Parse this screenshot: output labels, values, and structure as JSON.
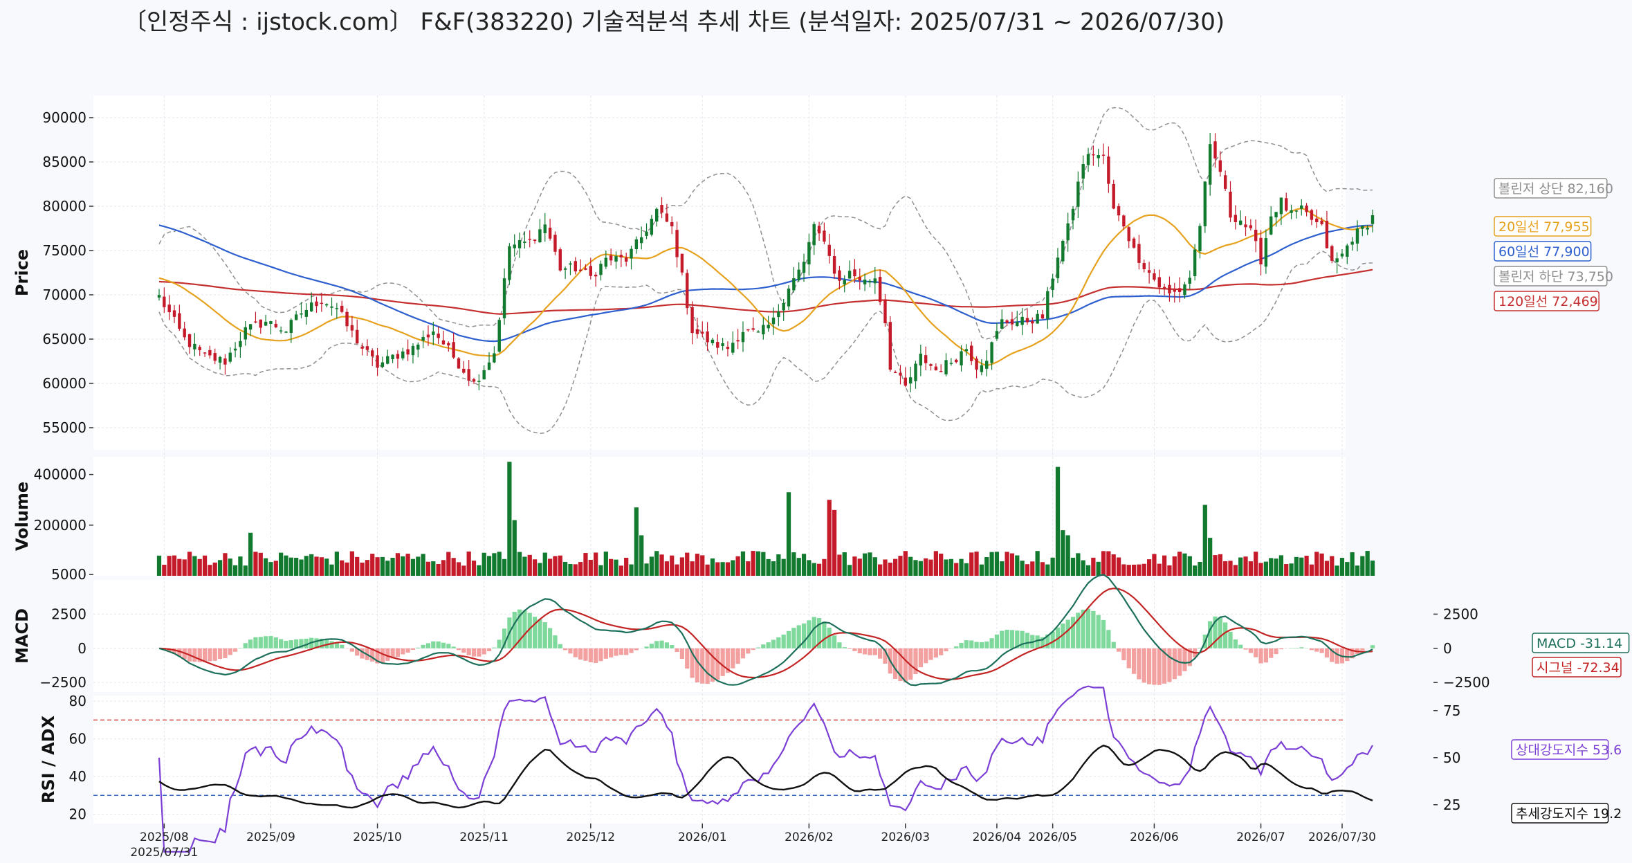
{
  "title": "〔인정주식 : ijstock.com〕 F&F(383220) 기술적분석 추세 차트 (분석일자: 2025/07/31 ~ 2026/07/30)",
  "colors": {
    "up": "#117a2e",
    "down": "#c41a2a",
    "ma20": "#e6a11d",
    "ma60": "#2d5fcf",
    "ma120": "#c62f2f",
    "boll": "#8f8f8f",
    "macd": "#1c6f5a",
    "signal": "#c42323",
    "hist_pos": "#7fd89c",
    "hist_neg": "#f2a0a0",
    "rsi": "#7b3fd6",
    "adx": "#111111",
    "ref_high": "#d94a4a",
    "ref_low": "#3568c4"
  },
  "chart_data": [
    {
      "type": "candlestick",
      "ylabel": "Price",
      "ylim": [
        52500,
        92500
      ],
      "yticks": [
        55000,
        60000,
        65000,
        70000,
        75000,
        80000,
        85000,
        90000
      ],
      "x_start": "2025/07/31",
      "x_end": "2026/07/30",
      "xticks": [
        "2025/08",
        "2025/09",
        "2025/10",
        "2025/11",
        "2025/12",
        "2026/01",
        "2026/02",
        "2026/03",
        "2026/04",
        "2026/05",
        "2026/06",
        "2026/07",
        "2026/07/30"
      ],
      "xtick_first_sub": "2025/07/31",
      "xtick_month_index": [
        1,
        22,
        43,
        64,
        85,
        107,
        128,
        147,
        165,
        176,
        196,
        217,
        233
      ],
      "close_anchors": [
        [
          0,
          69800
        ],
        [
          5,
          65000
        ],
        [
          9,
          63000
        ],
        [
          13,
          62500
        ],
        [
          17,
          66000
        ],
        [
          21,
          67000
        ],
        [
          25,
          66000
        ],
        [
          28,
          68000
        ],
        [
          32,
          69500
        ],
        [
          35,
          68500
        ],
        [
          37,
          66500
        ],
        [
          40,
          64000
        ],
        [
          43,
          62000
        ],
        [
          46,
          63000
        ],
        [
          50,
          64000
        ],
        [
          54,
          66000
        ],
        [
          58,
          63000
        ],
        [
          62,
          60000
        ],
        [
          66,
          63500
        ],
        [
          69,
          75500
        ],
        [
          73,
          76000
        ],
        [
          76,
          78000
        ],
        [
          79,
          73000
        ],
        [
          82,
          73000
        ],
        [
          85,
          72000
        ],
        [
          88,
          74000
        ],
        [
          92,
          74000
        ],
        [
          95,
          76500
        ],
        [
          98,
          79500
        ],
        [
          101,
          77500
        ],
        [
          103,
          72000
        ],
        [
          105,
          66000
        ],
        [
          109,
          64500
        ],
        [
          112,
          64000
        ],
        [
          115,
          66000
        ],
        [
          118,
          65500
        ],
        [
          121,
          67000
        ],
        [
          124,
          71000
        ],
        [
          127,
          73500
        ],
        [
          129,
          78000
        ],
        [
          131,
          75500
        ],
        [
          134,
          71500
        ],
        [
          136,
          72500
        ],
        [
          139,
          71500
        ],
        [
          141,
          72000
        ],
        [
          143,
          67000
        ],
        [
          144,
          62000
        ],
        [
          147,
          59500
        ],
        [
          150,
          63000
        ],
        [
          153,
          61500
        ],
        [
          156,
          62500
        ],
        [
          159,
          64000
        ],
        [
          161,
          62000
        ],
        [
          163,
          63000
        ],
        [
          166,
          67000
        ],
        [
          170,
          67000
        ],
        [
          174,
          67500
        ],
        [
          177,
          74500
        ],
        [
          179,
          77500
        ],
        [
          182,
          85000
        ],
        [
          184,
          86000
        ],
        [
          186,
          85500
        ],
        [
          188,
          79500
        ],
        [
          190,
          78000
        ],
        [
          192,
          75000
        ],
        [
          195,
          72500
        ],
        [
          197,
          71000
        ],
        [
          199,
          70000
        ],
        [
          201,
          70500
        ],
        [
          203,
          72000
        ],
        [
          205,
          78000
        ],
        [
          207,
          86500
        ],
        [
          209,
          84000
        ],
        [
          211,
          79000
        ],
        [
          213,
          78500
        ],
        [
          215,
          77000
        ],
        [
          217,
          74000
        ],
        [
          219,
          79000
        ],
        [
          221,
          80500
        ],
        [
          223,
          79000
        ],
        [
          225,
          79500
        ],
        [
          227,
          78500
        ],
        [
          229,
          77500
        ],
        [
          231,
          73500
        ],
        [
          233,
          74500
        ],
        [
          235,
          76500
        ],
        [
          237,
          77500
        ],
        [
          239,
          78800
        ]
      ],
      "volume_ylim": [
        0,
        470000
      ],
      "volume_yticks": [
        5000,
        200000,
        400000
      ],
      "volume_spikes": [
        [
          18,
          170000
        ],
        [
          69,
          450000
        ],
        [
          70,
          220000
        ],
        [
          94,
          270000
        ],
        [
          95,
          160000
        ],
        [
          124,
          330000
        ],
        [
          132,
          300000
        ],
        [
          133,
          260000
        ],
        [
          177,
          430000
        ],
        [
          178,
          180000
        ],
        [
          179,
          160000
        ],
        [
          206,
          280000
        ],
        [
          207,
          150000
        ],
        [
          239,
          60000
        ]
      ],
      "last_values": {
        "bollinger_upper": 82160,
        "ma20": 77955,
        "ma60": 77900,
        "bollinger_lower": 73750,
        "ma120": 72469
      }
    },
    {
      "type": "macd",
      "ylabel": "MACD",
      "ylim": [
        -3200,
        5000
      ],
      "yticks_left": [
        -2500,
        0,
        2500
      ],
      "yticks_right": [
        -2500,
        0,
        2500
      ],
      "last_values": {
        "macd": -31.14,
        "signal": -72.34
      }
    },
    {
      "type": "line",
      "ylabel": "RSI / ADX",
      "ylim": [
        15,
        83
      ],
      "yticks_left": [
        20,
        40,
        60,
        80
      ],
      "yticks_right": [
        25,
        50,
        75
      ],
      "ref_lines": [
        70,
        30
      ],
      "last_values": {
        "rsi": 53.6,
        "adx": 19.2
      }
    }
  ],
  "legend": {
    "boll_upper": "볼린저 상단 82,160",
    "ma20": "20일선 77,955",
    "ma60": "60일선 77,900",
    "boll_lower": "볼린저 하단 73,750",
    "ma120": "120일선 72,469",
    "macd": "MACD -31.14",
    "signal": "시그널 -72.34",
    "rsi": "상대강도지수 53.6",
    "adx": "추세강도지수 19.2"
  }
}
